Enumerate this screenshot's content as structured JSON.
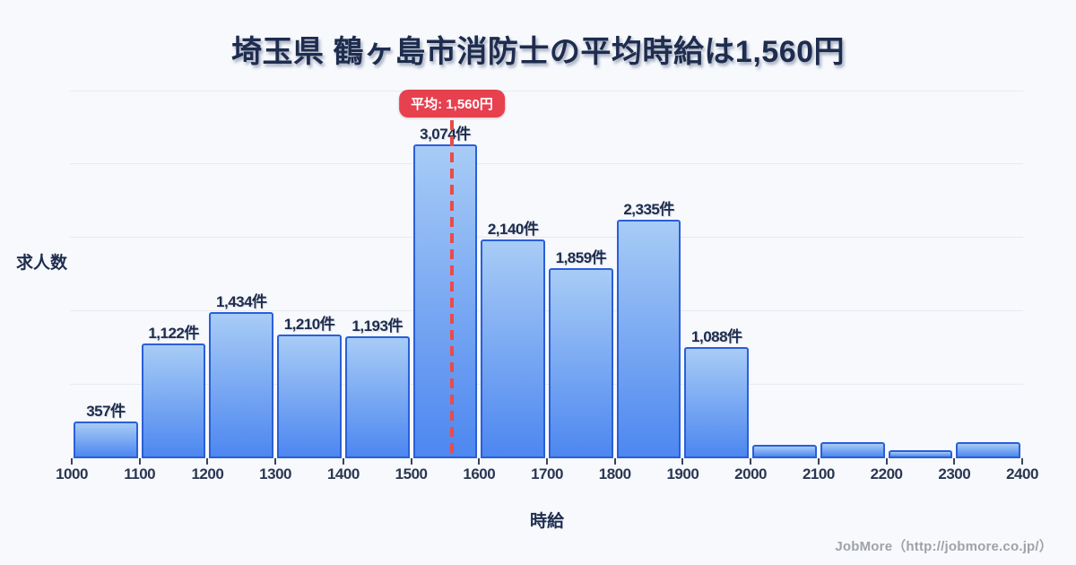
{
  "title": "埼玉県 鶴ヶ島市消防士の平均時給は1,560円",
  "footer": {
    "credit": "JobMore（http://jobmore.co.jp/）"
  },
  "colors": {
    "background": "#f7f9fc",
    "accent_red": "#e7404f",
    "avg_line_red": "#ea4b4b",
    "bar_gradient_top": "#a8ccf6",
    "bar_gradient_bottom": "#4d87f0",
    "bar_border": "#2a5fd9",
    "gridline": "#e6eaf2",
    "text_dark": "#1e2c4e",
    "footer_gray": "#9fa2a8"
  },
  "chart_data": {
    "type": "bar",
    "title": "埼玉県 鶴ヶ島市消防士の平均時給は1,560円",
    "xlabel": "時給",
    "ylabel": "求人数",
    "categories": [
      "1000-1100",
      "1100-1200",
      "1200-1300",
      "1300-1400",
      "1400-1500",
      "1500-1600",
      "1600-1700",
      "1700-1800",
      "1800-1900",
      "1900-2000",
      "2000-2100",
      "2100-2200",
      "2200-2300",
      "2300-2400"
    ],
    "values": [
      357,
      1122,
      1434,
      1210,
      1193,
      3074,
      2140,
      1859,
      2335,
      1088,
      130,
      160,
      75,
      160
    ],
    "bar_labels": [
      "357件",
      "1,122件",
      "1,434件",
      "1,210件",
      "1,193件",
      "3,074件",
      "2,140件",
      "1,859件",
      "2,335件",
      "1,088件",
      null,
      null,
      null,
      null
    ],
    "x_ticks": [
      "1000",
      "1100",
      "1200",
      "1300",
      "1400",
      "1500",
      "1600",
      "1700",
      "1800",
      "1900",
      "2000",
      "2100",
      "2200",
      "2300",
      "2400"
    ],
    "average": {
      "value": 1560,
      "badge_label": "平均: 1,560円"
    },
    "xlim": [
      1000,
      2400
    ],
    "ylim": [
      0,
      3600
    ],
    "grid": true,
    "legend": false
  }
}
